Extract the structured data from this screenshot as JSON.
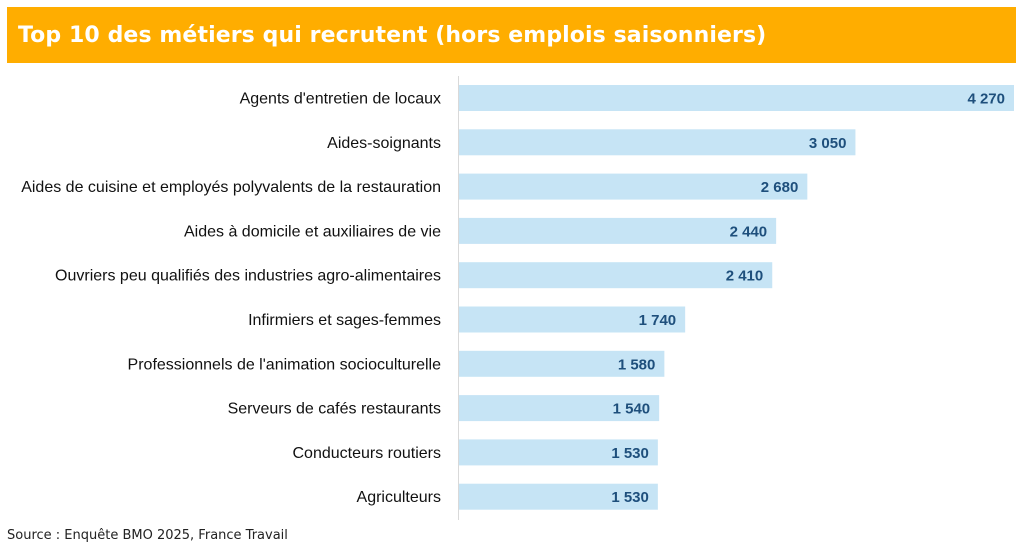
{
  "header": {
    "title": "Top 10 des métiers qui recrutent (hors emplois saisonniers)"
  },
  "footer": {
    "source": "Source : Enquête BMO 2025, France Travail"
  },
  "colors": {
    "title_background": "#ffad00",
    "bar_fill": "#c6e4f5",
    "value_text": "#1e4f7c",
    "axis_line": "#d9d9d9"
  },
  "chart_data": {
    "type": "bar",
    "orientation": "horizontal",
    "categories": [
      "Agents d'entretien de locaux",
      "Aides-soignants",
      "Aides de cuisine et employés polyvalents de la restauration",
      "Aides à domicile et auxiliaires de vie",
      "Ouvriers peu qualifiés des industries agro-alimentaires",
      "Infirmiers et sages-femmes",
      "Professionnels de l'animation socioculturelle",
      "Serveurs de cafés restaurants",
      "Conducteurs routiers",
      "Agriculteurs"
    ],
    "values": [
      4270,
      3050,
      2680,
      2440,
      2410,
      1740,
      1580,
      1540,
      1530,
      1530
    ],
    "value_labels": [
      "4 270",
      "3 050",
      "2 680",
      "2 440",
      "2 410",
      "1 740",
      "1 580",
      "1 540",
      "1 530",
      "1 530"
    ],
    "xlim": [
      0,
      4270
    ],
    "grid": false,
    "legend": "none"
  }
}
